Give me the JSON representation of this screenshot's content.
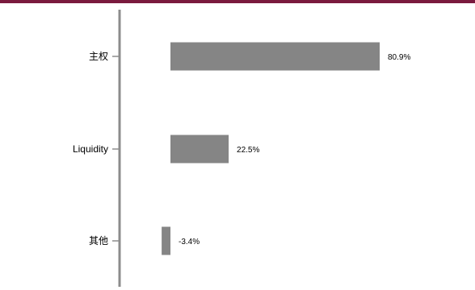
{
  "colors": {
    "top_rule": "#7a1a3e",
    "axis": "#8c8c8c",
    "bar": "#858585"
  },
  "chart_data": {
    "type": "bar",
    "orientation": "horizontal",
    "title": "",
    "xlabel": "",
    "ylabel": "",
    "categories": [
      "主权",
      "Liquidity",
      "其他"
    ],
    "values": [
      80.9,
      22.5,
      -3.4
    ],
    "value_labels": [
      "80.9%",
      "22.5%",
      "-3.4%"
    ],
    "xlim": [
      -10,
      100
    ],
    "grid": false,
    "legend": "none"
  }
}
